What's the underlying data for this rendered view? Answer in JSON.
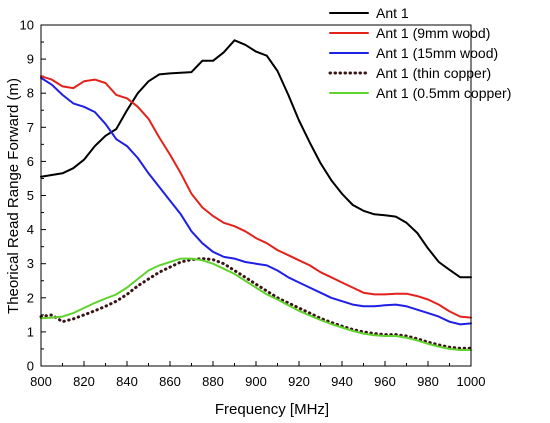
{
  "chart_data": {
    "type": "line",
    "xlabel": "Frequency [MHz]",
    "ylabel": "Theorical Read Range Forward (m)",
    "xlim": [
      800,
      1000
    ],
    "ylim": [
      0,
      10
    ],
    "xticks": [
      800,
      820,
      840,
      860,
      880,
      900,
      920,
      940,
      960,
      980,
      1000
    ],
    "yticks": [
      0,
      1,
      2,
      3,
      4,
      5,
      6,
      7,
      8,
      9,
      10
    ],
    "grid": false,
    "legend_position": "top-right",
    "series": [
      {
        "name": "Ant 1",
        "color": "#000000",
        "dash": "solid",
        "x": [
          800,
          805,
          810,
          815,
          820,
          825,
          830,
          835,
          840,
          845,
          850,
          855,
          860,
          865,
          870,
          875,
          880,
          885,
          890,
          895,
          900,
          905,
          910,
          915,
          920,
          925,
          930,
          935,
          940,
          945,
          950,
          955,
          960,
          965,
          970,
          975,
          980,
          985,
          990,
          995,
          1000
        ],
        "y": [
          5.55,
          5.6,
          5.65,
          5.8,
          6.05,
          6.45,
          6.75,
          6.95,
          7.5,
          8.0,
          8.35,
          8.55,
          8.58,
          8.6,
          8.62,
          8.95,
          8.95,
          9.2,
          9.55,
          9.42,
          9.22,
          9.1,
          8.65,
          7.95,
          7.2,
          6.55,
          5.95,
          5.45,
          5.05,
          4.72,
          4.55,
          4.45,
          4.42,
          4.38,
          4.2,
          3.9,
          3.45,
          3.05,
          2.82,
          2.6,
          2.6
        ]
      },
      {
        "name": "Ant 1 (9mm wood)",
        "color": "#e3221b",
        "dash": "solid",
        "x": [
          800,
          805,
          810,
          815,
          820,
          825,
          830,
          835,
          840,
          845,
          850,
          855,
          860,
          865,
          870,
          875,
          880,
          885,
          890,
          895,
          900,
          905,
          910,
          915,
          920,
          925,
          930,
          935,
          940,
          945,
          950,
          955,
          960,
          965,
          970,
          975,
          980,
          985,
          990,
          995,
          1000
        ],
        "y": [
          8.5,
          8.4,
          8.2,
          8.15,
          8.35,
          8.4,
          8.3,
          7.95,
          7.85,
          7.6,
          7.25,
          6.7,
          6.2,
          5.65,
          5.05,
          4.65,
          4.4,
          4.2,
          4.1,
          3.95,
          3.75,
          3.6,
          3.4,
          3.25,
          3.1,
          2.95,
          2.75,
          2.6,
          2.45,
          2.3,
          2.15,
          2.1,
          2.1,
          2.12,
          2.12,
          2.05,
          1.95,
          1.8,
          1.6,
          1.45,
          1.42
        ]
      },
      {
        "name": "Ant 1 (15mm wood)",
        "color": "#1f1fe6",
        "dash": "solid",
        "x": [
          800,
          805,
          810,
          815,
          820,
          825,
          830,
          835,
          840,
          845,
          850,
          855,
          860,
          865,
          870,
          875,
          880,
          885,
          890,
          895,
          900,
          905,
          910,
          915,
          920,
          925,
          930,
          935,
          940,
          945,
          950,
          955,
          960,
          965,
          970,
          975,
          980,
          985,
          990,
          995,
          1000
        ],
        "y": [
          8.45,
          8.25,
          7.95,
          7.7,
          7.6,
          7.45,
          7.1,
          6.65,
          6.45,
          6.1,
          5.65,
          5.25,
          4.85,
          4.45,
          3.95,
          3.6,
          3.35,
          3.2,
          3.15,
          3.05,
          3.0,
          2.95,
          2.8,
          2.6,
          2.45,
          2.3,
          2.15,
          2.0,
          1.9,
          1.8,
          1.75,
          1.75,
          1.78,
          1.8,
          1.75,
          1.65,
          1.55,
          1.45,
          1.3,
          1.22,
          1.25
        ]
      },
      {
        "name": "Ant 1 (thin copper)",
        "color": "#3a1414",
        "dash": "dotted",
        "x": [
          800,
          805,
          810,
          815,
          820,
          825,
          830,
          835,
          840,
          845,
          850,
          855,
          860,
          865,
          870,
          875,
          880,
          885,
          890,
          895,
          900,
          905,
          910,
          915,
          920,
          925,
          930,
          935,
          940,
          945,
          950,
          955,
          960,
          965,
          970,
          975,
          980,
          985,
          990,
          995,
          1000
        ],
        "y": [
          1.45,
          1.5,
          1.3,
          1.38,
          1.5,
          1.62,
          1.75,
          1.9,
          2.1,
          2.35,
          2.55,
          2.75,
          2.9,
          3.05,
          3.12,
          3.15,
          3.12,
          3.0,
          2.8,
          2.6,
          2.4,
          2.2,
          2.0,
          1.85,
          1.7,
          1.55,
          1.4,
          1.28,
          1.17,
          1.07,
          1.0,
          0.95,
          0.92,
          0.92,
          0.88,
          0.8,
          0.7,
          0.62,
          0.55,
          0.52,
          0.52
        ]
      },
      {
        "name": "Ant 1 (0.5mm copper)",
        "color": "#5fd22c",
        "dash": "solid",
        "x": [
          800,
          805,
          810,
          815,
          820,
          825,
          830,
          835,
          840,
          845,
          850,
          855,
          860,
          865,
          870,
          875,
          880,
          885,
          890,
          895,
          900,
          905,
          910,
          915,
          920,
          925,
          930,
          935,
          940,
          945,
          950,
          955,
          960,
          965,
          970,
          975,
          980,
          985,
          990,
          995,
          1000
        ],
        "y": [
          1.4,
          1.42,
          1.45,
          1.55,
          1.7,
          1.85,
          1.98,
          2.1,
          2.3,
          2.55,
          2.8,
          2.95,
          3.05,
          3.15,
          3.15,
          3.1,
          3.0,
          2.85,
          2.7,
          2.5,
          2.3,
          2.1,
          1.95,
          1.78,
          1.62,
          1.48,
          1.35,
          1.23,
          1.13,
          1.03,
          0.95,
          0.9,
          0.88,
          0.88,
          0.83,
          0.75,
          0.65,
          0.57,
          0.5,
          0.47,
          0.47
        ]
      }
    ]
  }
}
